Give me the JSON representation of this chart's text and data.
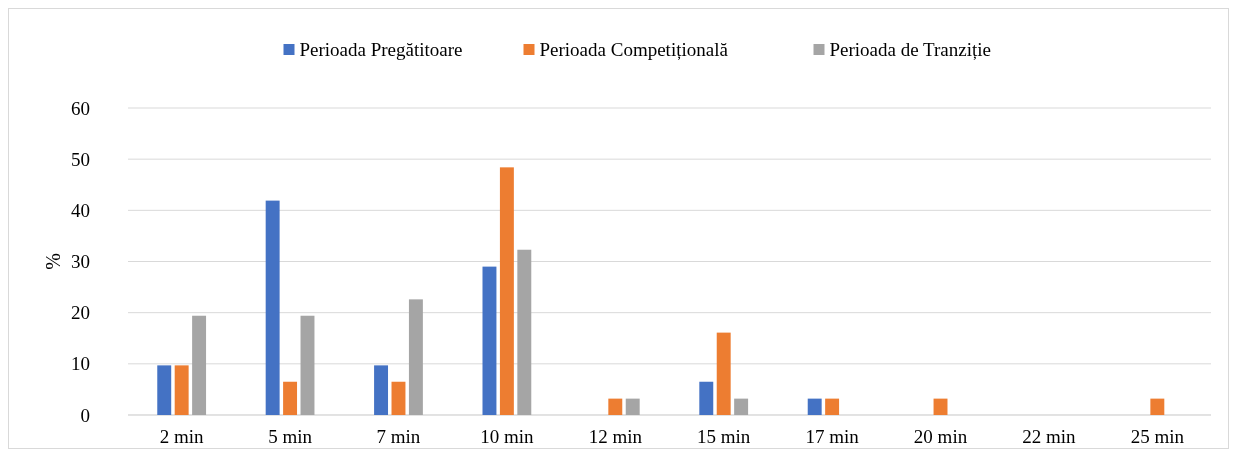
{
  "chart_data": {
    "type": "bar",
    "ylabel": "%",
    "categories": [
      "2 min",
      "5 min",
      "7 min",
      "10 min",
      "12 min",
      "15 min",
      "17 min",
      "20 min",
      "22 min",
      "25 min"
    ],
    "series": [
      {
        "name": "Perioada Pregătitoare",
        "color": "#4472c4",
        "values": [
          9.7,
          41.9,
          9.7,
          29.0,
          0,
          6.5,
          3.2,
          0,
          0,
          0
        ]
      },
      {
        "name": "Perioada Competițională",
        "color": "#ed7d31",
        "values": [
          9.7,
          6.5,
          6.5,
          48.4,
          3.2,
          16.1,
          3.2,
          3.2,
          0,
          3.2
        ]
      },
      {
        "name": "Perioada de Tranziție",
        "color": "#a5a5a5",
        "values": [
          19.4,
          19.4,
          22.6,
          32.3,
          3.2,
          3.2,
          0,
          0,
          0,
          0
        ]
      }
    ],
    "ylim": [
      0,
      60
    ],
    "yticks": [
      0,
      10,
      20,
      30,
      40,
      50,
      60
    ],
    "grid": "y",
    "legend": "top"
  }
}
